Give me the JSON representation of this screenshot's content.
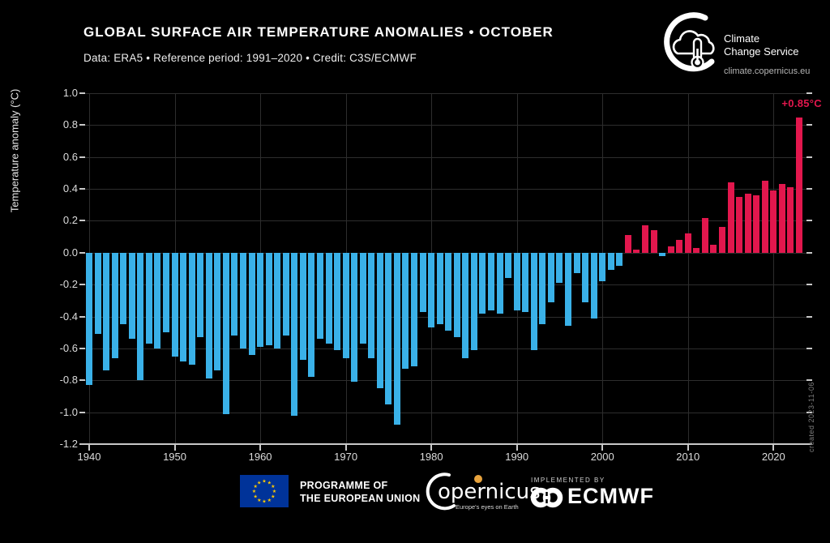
{
  "header": {
    "title": "GLOBAL SURFACE AIR TEMPERATURE ANOMALIES • OCTOBER",
    "subtitle": "Data: ERA5 • Reference period: 1991–2020 • Credit: C3S/ECMWF"
  },
  "logo": {
    "line1": "Climate",
    "line2": "Change Service",
    "url": "climate.copernicus.eu"
  },
  "watermark": "created 2023-11-06",
  "footer": {
    "eu_line1": "PROGRAMME OF",
    "eu_line2": "THE EUROPEAN UNION",
    "copernicus_word": "opernicus",
    "copernicus_tagline": "Europe's eyes on Earth",
    "implemented_by": "IMPLEMENTED BY",
    "ecmwf": "ECMWF"
  },
  "colors": {
    "positive": "#e2174d",
    "negative": "#3ab1e8",
    "grid": "#2d2d2d",
    "axis": "#c8c8c8",
    "tick_text": "#dcdcdc",
    "eu_blue": "#003399",
    "eu_star": "#ffcc00",
    "copernicus_orange": "#e8a33d"
  },
  "chart_data": {
    "type": "bar",
    "title": "Global surface air temperature anomalies — October",
    "ylabel": "Temperature anomaly (°C)",
    "ylim": [
      -1.2,
      1.0
    ],
    "xlim": [
      1939.5,
      2023.9
    ],
    "grid": true,
    "y_ticks": [
      "1.0",
      "0.8",
      "0.6",
      "0.4",
      "0.2",
      "0.0",
      "-0.2",
      "-0.4",
      "-0.6",
      "-0.8",
      "-1.0",
      "-1.2"
    ],
    "x_ticks": [
      1940,
      1950,
      1960,
      1970,
      1980,
      1990,
      2000,
      2010,
      2020
    ],
    "years": [
      1940,
      1941,
      1942,
      1943,
      1944,
      1945,
      1946,
      1947,
      1948,
      1949,
      1950,
      1951,
      1952,
      1953,
      1954,
      1955,
      1956,
      1957,
      1958,
      1959,
      1960,
      1961,
      1962,
      1963,
      1964,
      1965,
      1966,
      1967,
      1968,
      1969,
      1970,
      1971,
      1972,
      1973,
      1974,
      1975,
      1976,
      1977,
      1978,
      1979,
      1980,
      1981,
      1982,
      1983,
      1984,
      1985,
      1986,
      1987,
      1988,
      1989,
      1990,
      1991,
      1992,
      1993,
      1994,
      1995,
      1996,
      1997,
      1998,
      1999,
      2000,
      2001,
      2002,
      2003,
      2004,
      2005,
      2006,
      2007,
      2008,
      2009,
      2010,
      2011,
      2012,
      2013,
      2014,
      2015,
      2016,
      2017,
      2018,
      2019,
      2020,
      2021,
      2022,
      2023
    ],
    "values": [
      -0.83,
      -0.51,
      -0.74,
      -0.66,
      -0.45,
      -0.54,
      -0.8,
      -0.57,
      -0.6,
      -0.5,
      -0.65,
      -0.68,
      -0.7,
      -0.53,
      -0.79,
      -0.74,
      -1.01,
      -0.52,
      -0.6,
      -0.64,
      -0.59,
      -0.58,
      -0.6,
      -0.52,
      -1.02,
      -0.67,
      -0.78,
      -0.54,
      -0.57,
      -0.61,
      -0.66,
      -0.81,
      -0.57,
      -0.66,
      -0.85,
      -0.95,
      -1.08,
      -0.73,
      -0.71,
      -0.37,
      -0.47,
      -0.45,
      -0.49,
      -0.53,
      -0.66,
      -0.61,
      -0.38,
      -0.36,
      -0.38,
      -0.16,
      -0.36,
      -0.37,
      -0.61,
      -0.45,
      -0.31,
      -0.19,
      -0.46,
      -0.13,
      -0.31,
      -0.41,
      -0.18,
      -0.11,
      -0.08,
      0.11,
      0.02,
      0.17,
      0.14,
      -0.02,
      0.04,
      0.08,
      0.12,
      0.03,
      0.22,
      0.05,
      0.16,
      0.44,
      0.35,
      0.37,
      0.36,
      0.45,
      0.39,
      0.43,
      0.41,
      0.85
    ],
    "annotation": {
      "year": 2023,
      "label": "+0.85°C"
    },
    "legend": null
  }
}
